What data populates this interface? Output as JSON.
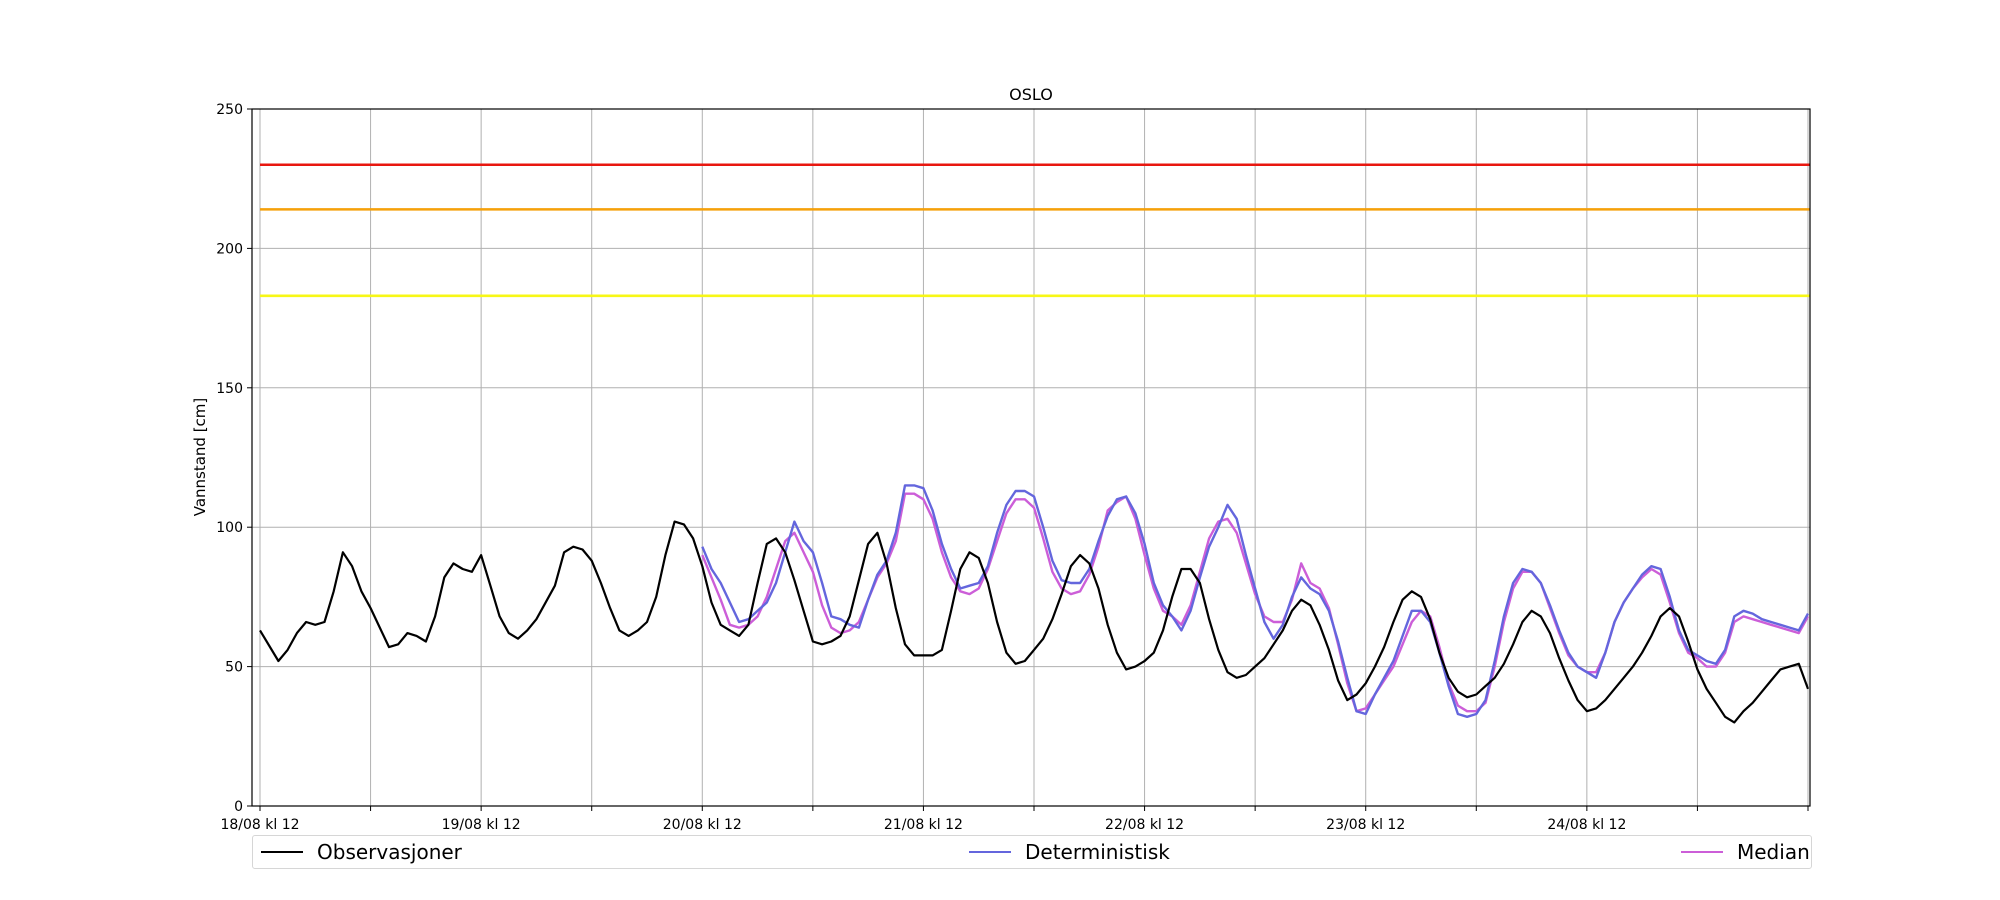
{
  "chart_data": {
    "type": "line",
    "title": "OSLO",
    "xlabel": "",
    "ylabel": "Vannstand [cm]",
    "ylim": [
      0,
      250
    ],
    "yticks": [
      0,
      50,
      100,
      150,
      200,
      250
    ],
    "xlim": [
      0,
      168
    ],
    "x_unit": "hours since 18/08 kl 12",
    "xtick_labels": [
      "18/08 kl 12",
      "19/08 kl 12",
      "20/08 kl 12",
      "21/08 kl 12",
      "22/08 kl 12",
      "23/08 kl 12",
      "24/08 kl 12"
    ],
    "grid": true,
    "legend_placement": "bottom",
    "thresholds": [
      {
        "value": 230,
        "color": "#e8170f"
      },
      {
        "value": 214,
        "color": "#f5a00a"
      },
      {
        "value": 183,
        "color": "#f7f716"
      }
    ],
    "series": [
      {
        "name": "Observasjoner",
        "color": "#000000",
        "x": [
          0,
          2,
          3,
          4,
          5,
          6,
          7,
          8,
          9,
          10,
          11,
          12,
          13,
          14,
          15,
          16,
          17,
          18,
          19,
          20,
          21,
          22,
          23,
          24,
          25,
          26,
          27,
          28,
          29,
          30,
          32,
          33,
          34,
          35,
          36,
          37,
          38,
          39,
          40,
          41,
          42,
          43,
          44,
          45,
          46,
          47,
          48,
          49,
          50,
          51,
          52,
          53,
          54,
          55,
          56,
          57,
          58,
          59,
          60,
          61,
          62,
          63,
          64,
          65,
          66,
          67,
          68,
          69,
          70,
          71,
          72,
          73,
          74,
          75,
          76,
          77,
          78,
          79,
          80,
          81,
          82,
          83,
          84,
          85,
          86,
          87,
          88,
          89,
          90,
          91,
          92,
          93,
          94,
          95,
          96,
          97,
          98,
          99,
          100,
          101,
          102,
          103,
          104,
          105,
          106,
          107,
          108,
          109,
          110,
          111,
          112,
          113,
          114,
          115,
          116,
          117,
          118,
          119,
          120,
          121,
          122,
          123,
          124,
          125,
          126,
          127,
          128,
          129,
          130,
          131,
          132,
          133,
          134,
          135,
          136,
          137,
          138,
          139,
          140,
          141,
          142,
          143,
          144,
          145,
          146,
          147,
          148,
          149,
          150,
          151,
          152,
          153,
          154,
          155,
          156,
          157,
          158,
          159,
          160,
          161,
          162,
          163,
          164,
          165,
          166,
          167,
          168
        ],
        "values": [
          63,
          52,
          56,
          62,
          66,
          65,
          66,
          77,
          91,
          86,
          77,
          71,
          64,
          57,
          58,
          62,
          61,
          59,
          68,
          82,
          87,
          85,
          84,
          90,
          79,
          68,
          62,
          60,
          63,
          67,
          79,
          91,
          93,
          92,
          88,
          80,
          71,
          63,
          61,
          63,
          66,
          75,
          90,
          102,
          101,
          96,
          86,
          73,
          65,
          63,
          61,
          65,
          80,
          94,
          96,
          91,
          81,
          70,
          59,
          58,
          59,
          61,
          68,
          81,
          94,
          98,
          87,
          71,
          58,
          54,
          54,
          54,
          56,
          70,
          85,
          91,
          89,
          80,
          66,
          55,
          51,
          52,
          56,
          60,
          67,
          76,
          86,
          90,
          87,
          78,
          65,
          55,
          49,
          50,
          52,
          55,
          63,
          75,
          85,
          85,
          80,
          67,
          56,
          48,
          46,
          47,
          50,
          53,
          58,
          63,
          70,
          74,
          72,
          65,
          56,
          45,
          38,
          40,
          44,
          50,
          57,
          66,
          74,
          77,
          75,
          67,
          55,
          46,
          41,
          39,
          40,
          43,
          46,
          51,
          58,
          66,
          70,
          68,
          62,
          53,
          45,
          38,
          34,
          35,
          38,
          42,
          46,
          50,
          55,
          61,
          68,
          71,
          68,
          59,
          49,
          42,
          37,
          32,
          30,
          34,
          37,
          41,
          45,
          49,
          50,
          51,
          42
        ]
      },
      {
        "name": "Deterministisk",
        "color": "#6466dd",
        "x": [
          48,
          49,
          50,
          51,
          52,
          53,
          54,
          55,
          56,
          57,
          58,
          59,
          60,
          61,
          62,
          63,
          64,
          65,
          66,
          67,
          68,
          69,
          70,
          71,
          72,
          73,
          74,
          75,
          76,
          77,
          78,
          79,
          80,
          81,
          82,
          83,
          84,
          85,
          86,
          87,
          88,
          89,
          90,
          91,
          92,
          93,
          94,
          95,
          96,
          97,
          98,
          99,
          100,
          101,
          102,
          103,
          104,
          105,
          106,
          107,
          108,
          109,
          110,
          111,
          112,
          113,
          114,
          115,
          116,
          117,
          118,
          119,
          120,
          121,
          122,
          123,
          124,
          125,
          126,
          127,
          128,
          129,
          130,
          131,
          132,
          133,
          134,
          135,
          136,
          137,
          138,
          139,
          140,
          141,
          142,
          143,
          144,
          145,
          146,
          147,
          148,
          149,
          150,
          151,
          152,
          153,
          154,
          155,
          156,
          157,
          158,
          159,
          160,
          161,
          162,
          163,
          164,
          165,
          166,
          167,
          168
        ],
        "values": [
          93,
          85,
          80,
          73,
          66,
          67,
          70,
          73,
          80,
          91,
          102,
          95,
          91,
          80,
          68,
          67,
          65,
          64,
          74,
          83,
          88,
          98,
          115,
          115,
          114,
          106,
          94,
          85,
          78,
          79,
          80,
          86,
          98,
          108,
          113,
          113,
          111,
          100,
          88,
          81,
          80,
          80,
          85,
          95,
          104,
          110,
          111,
          105,
          94,
          80,
          72,
          68,
          63,
          70,
          82,
          93,
          100,
          108,
          103,
          90,
          78,
          66,
          60,
          65,
          75,
          82,
          78,
          76,
          70,
          59,
          46,
          34,
          33,
          40,
          46,
          52,
          61,
          70,
          70,
          66,
          55,
          43,
          33,
          32,
          33,
          38,
          52,
          68,
          80,
          85,
          84,
          80,
          72,
          63,
          55,
          50,
          48,
          46,
          55,
          66,
          73,
          78,
          83,
          86,
          85,
          75,
          63,
          56,
          54,
          52,
          51,
          56,
          68,
          70,
          69,
          67,
          66,
          65,
          64,
          63,
          69
        ]
      },
      {
        "name": "Median",
        "color": "#cc5ed8",
        "x": [
          48,
          49,
          50,
          51,
          52,
          53,
          54,
          55,
          56,
          57,
          58,
          59,
          60,
          61,
          62,
          63,
          64,
          65,
          66,
          67,
          68,
          69,
          70,
          71,
          72,
          73,
          74,
          75,
          76,
          77,
          78,
          79,
          80,
          81,
          82,
          83,
          84,
          85,
          86,
          87,
          88,
          89,
          90,
          91,
          92,
          93,
          94,
          95,
          96,
          97,
          98,
          99,
          100,
          101,
          102,
          103,
          104,
          105,
          106,
          107,
          108,
          109,
          110,
          111,
          112,
          113,
          114,
          115,
          116,
          117,
          118,
          119,
          120,
          121,
          122,
          123,
          124,
          125,
          126,
          127,
          128,
          129,
          130,
          131,
          132,
          133,
          134,
          135,
          136,
          137,
          138,
          139,
          140,
          141,
          142,
          143,
          144,
          145,
          146,
          147,
          148,
          149,
          150,
          151,
          152,
          153,
          154,
          155,
          156,
          157,
          158,
          159,
          160,
          161,
          162,
          163,
          164,
          165,
          166,
          167,
          168
        ],
        "values": [
          90,
          82,
          74,
          65,
          64,
          65,
          68,
          75,
          85,
          95,
          98,
          91,
          84,
          72,
          64,
          62,
          63,
          66,
          74,
          82,
          87,
          95,
          112,
          112,
          110,
          103,
          91,
          82,
          77,
          76,
          78,
          85,
          95,
          105,
          110,
          110,
          107,
          96,
          84,
          78,
          76,
          77,
          83,
          93,
          106,
          109,
          111,
          103,
          90,
          78,
          70,
          68,
          65,
          72,
          84,
          96,
          102,
          103,
          98,
          87,
          76,
          68,
          66,
          66,
          74,
          87,
          80,
          78,
          71,
          58,
          44,
          34,
          35,
          40,
          45,
          50,
          58,
          66,
          70,
          68,
          57,
          44,
          36,
          34,
          34,
          37,
          50,
          66,
          78,
          84,
          84,
          80,
          71,
          62,
          54,
          50,
          48,
          48,
          55,
          66,
          73,
          78,
          82,
          85,
          83,
          73,
          62,
          55,
          53,
          50,
          50,
          55,
          66,
          68,
          67,
          66,
          65,
          64,
          63,
          62,
          68
        ]
      }
    ]
  }
}
